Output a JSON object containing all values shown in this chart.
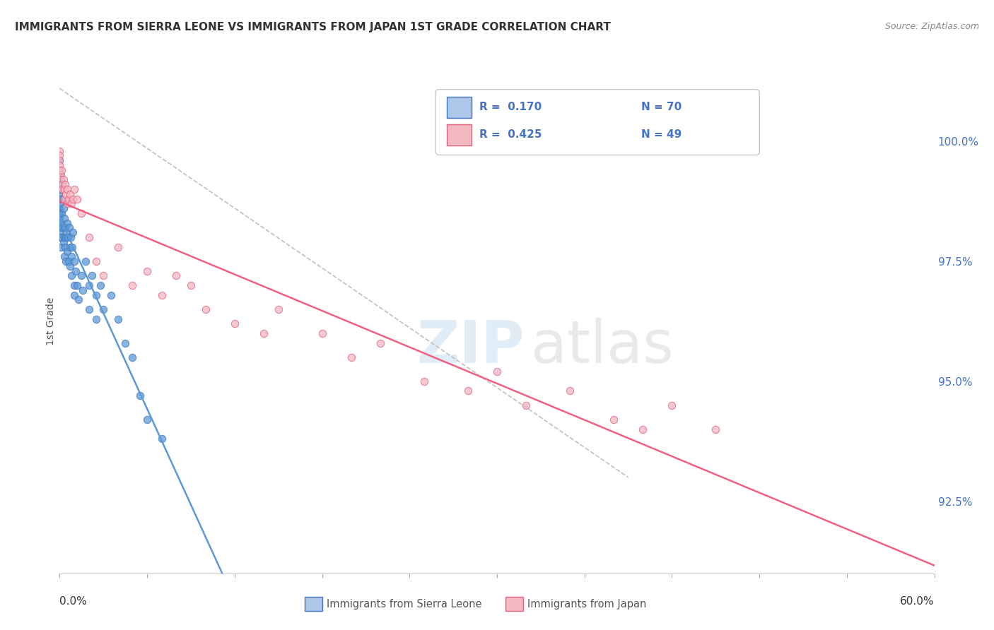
{
  "title": "IMMIGRANTS FROM SIERRA LEONE VS IMMIGRANTS FROM JAPAN 1ST GRADE CORRELATION CHART",
  "source_text": "Source: ZipAtlas.com",
  "ylabel_label": "1st Grade",
  "y_ticks": [
    92.5,
    95.0,
    97.5,
    100.0
  ],
  "x_range": [
    0.0,
    60.0
  ],
  "y_range": [
    91.0,
    101.5
  ],
  "legend_entries": [
    {
      "label": "Immigrants from Sierra Leone",
      "color": "#aec6e8",
      "R": 0.17,
      "N": 70
    },
    {
      "label": "Immigrants from Japan",
      "color": "#f4b8c1",
      "R": 0.425,
      "N": 49
    }
  ],
  "sierra_leone_x": [
    0.0,
    0.0,
    0.0,
    0.0,
    0.0,
    0.0,
    0.0,
    0.0,
    0.0,
    0.0,
    0.0,
    0.0,
    0.0,
    0.0,
    0.0,
    0.05,
    0.05,
    0.08,
    0.1,
    0.1,
    0.1,
    0.15,
    0.15,
    0.2,
    0.2,
    0.25,
    0.25,
    0.3,
    0.3,
    0.3,
    0.35,
    0.35,
    0.4,
    0.4,
    0.45,
    0.5,
    0.5,
    0.55,
    0.6,
    0.65,
    0.7,
    0.7,
    0.75,
    0.8,
    0.8,
    0.85,
    0.9,
    1.0,
    1.0,
    1.0,
    1.1,
    1.2,
    1.3,
    1.5,
    1.6,
    1.8,
    2.0,
    2.0,
    2.2,
    2.5,
    2.5,
    2.8,
    3.0,
    3.5,
    4.0,
    4.5,
    5.0,
    5.5,
    6.0,
    7.0
  ],
  "sierra_leone_y": [
    99.6,
    99.4,
    99.2,
    99.1,
    99.0,
    98.9,
    98.8,
    98.7,
    98.6,
    98.5,
    98.4,
    98.3,
    98.2,
    98.1,
    98.0,
    99.3,
    98.5,
    99.0,
    98.8,
    98.3,
    97.8,
    98.5,
    98.0,
    99.1,
    98.2,
    98.6,
    97.9,
    98.4,
    98.0,
    97.6,
    98.2,
    97.8,
    98.0,
    97.5,
    98.1,
    98.3,
    97.7,
    98.0,
    97.5,
    98.2,
    97.8,
    97.4,
    98.0,
    97.6,
    97.2,
    97.8,
    98.1,
    97.5,
    97.0,
    96.8,
    97.3,
    97.0,
    96.7,
    97.2,
    96.9,
    97.5,
    97.0,
    96.5,
    97.2,
    96.8,
    96.3,
    97.0,
    96.5,
    96.8,
    96.3,
    95.8,
    95.5,
    94.7,
    94.2,
    93.8
  ],
  "japan_x": [
    0.0,
    0.0,
    0.0,
    0.0,
    0.0,
    0.1,
    0.1,
    0.15,
    0.2,
    0.2,
    0.25,
    0.3,
    0.3,
    0.35,
    0.4,
    0.5,
    0.5,
    0.6,
    0.7,
    0.8,
    0.9,
    1.0,
    1.2,
    1.5,
    2.0,
    2.5,
    3.0,
    4.0,
    5.0,
    6.0,
    7.0,
    8.0,
    9.0,
    10.0,
    12.0,
    14.0,
    15.0,
    18.0,
    20.0,
    22.0,
    25.0,
    28.0,
    30.0,
    32.0,
    35.0,
    38.0,
    40.0,
    42.0,
    45.0
  ],
  "japan_y": [
    99.8,
    99.7,
    99.6,
    99.5,
    99.4,
    99.3,
    99.2,
    99.4,
    99.1,
    99.0,
    99.2,
    99.0,
    98.8,
    99.1,
    98.9,
    99.0,
    98.7,
    98.8,
    98.9,
    98.7,
    98.8,
    99.0,
    98.8,
    98.5,
    98.0,
    97.5,
    97.2,
    97.8,
    97.0,
    97.3,
    96.8,
    97.2,
    97.0,
    96.5,
    96.2,
    96.0,
    96.5,
    96.0,
    95.5,
    95.8,
    95.0,
    94.8,
    95.2,
    94.5,
    94.8,
    94.2,
    94.0,
    94.5,
    94.0
  ],
  "sl_dot_color": "#5b9bd5",
  "sl_dot_edge": "#4472c4",
  "jp_dot_color": "#f4b8c1",
  "jp_dot_edge": "#e06080",
  "sl_line_color": "#5b9bd5",
  "jp_line_color": "#f06080",
  "ref_line_color": "#c0c0c0"
}
